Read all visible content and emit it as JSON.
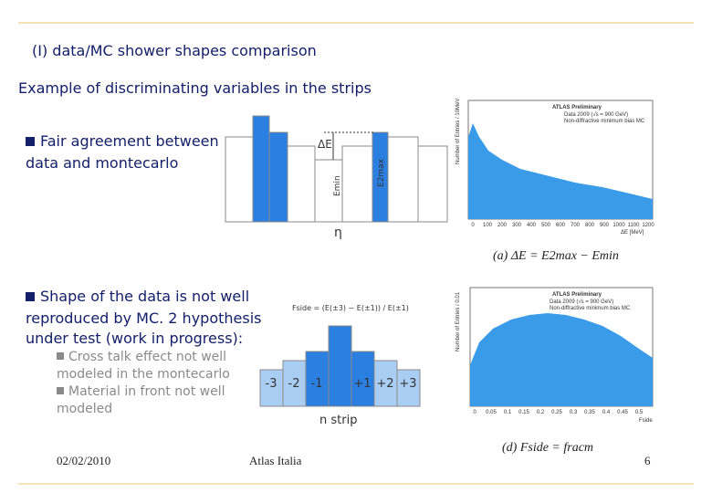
{
  "slide": {
    "title": "(I) data/MC shower shapes comparison",
    "subtitle": "Example of discriminating variables in the strips",
    "bullet_1": [
      "Fair agreement between",
      "data and montecarlo"
    ],
    "bullet_2": [
      "Shape of the data is not well",
      "reproduced by MC.  2 hypothesis",
      "under test (work in progress):"
    ],
    "sub_bullets": [
      [
        "Cross talk effect not well",
        "modeled in the montecarlo"
      ],
      [
        "Material in front not well",
        "modeled"
      ]
    ],
    "footer": {
      "date": "02/02/2010",
      "center": "Atlas Italia",
      "page": "6"
    }
  },
  "figure_delta_e": {
    "delta": "ΔE",
    "e_min": "Emin",
    "e_2max": "E2max",
    "axis": "η"
  },
  "figure_fside": {
    "formula": "Fside = (E(±3) − E(±1)) / E(±1)",
    "strips": [
      "-3",
      "-2",
      "-1",
      "+1",
      "+2",
      "+3"
    ],
    "axis": "n strip"
  },
  "plot_a": {
    "header": "ATLAS Preliminary",
    "legend": [
      "Data 2009 (√s = 900 GeV)",
      "Non-diffractive minimum bias MC"
    ],
    "ylabel": "Number of Entries / 10MeV",
    "xlabel": "ΔE [MeV]",
    "xticks": [
      "0",
      "100",
      "200",
      "300",
      "400",
      "500",
      "600",
      "700",
      "800",
      "900",
      "1000",
      "1100",
      "1200"
    ],
    "caption": "(a) ΔE = E2max − Emin"
  },
  "plot_d": {
    "header": "ATLAS Preliminary",
    "legend": [
      "Data 2009 (√s = 900 GeV)",
      "Non-diffractive minimum bias MC"
    ],
    "ylabel": "Number of Entries / 0.01",
    "xlabel": "Fside",
    "xticks": [
      "0",
      "0.05",
      "0.1",
      "0.15",
      "0.2",
      "0.25",
      "0.3",
      "0.35",
      "0.4",
      "0.45",
      "0.5"
    ],
    "caption": "(d) Fside = fracm"
  }
}
